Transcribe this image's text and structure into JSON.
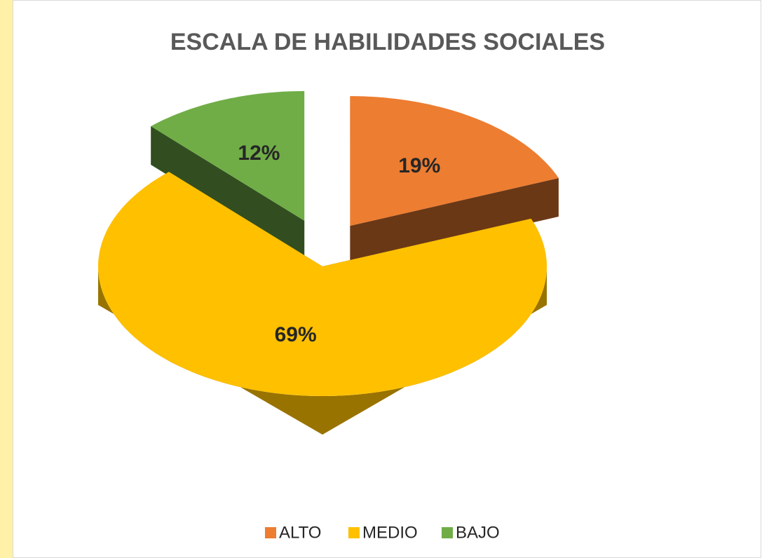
{
  "chart_data": {
    "type": "pie",
    "title": "ESCALA DE HABILIDADES SOCIALES",
    "categories": [
      "ALTO",
      "MEDIO",
      "BAJO"
    ],
    "values": [
      19,
      69,
      12
    ],
    "value_labels": [
      "19%",
      "69%",
      "12%"
    ],
    "colors": [
      "#ed7d31",
      "#ffc000",
      "#70ad47"
    ],
    "legend": "bottom"
  }
}
